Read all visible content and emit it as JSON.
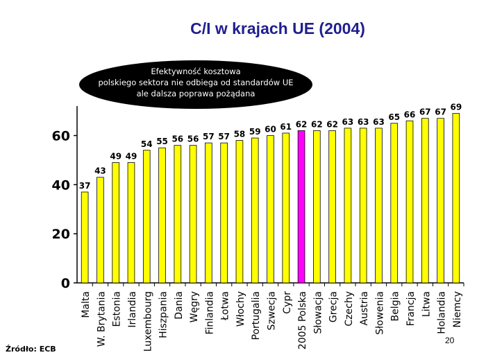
{
  "title": "C/I w krajach UE (2004)",
  "annotation": {
    "lines": [
      "Efektywność kosztowa",
      "polskiego sektora nie odbiega od standardów UE",
      "ale dalsza poprawa pożądana"
    ],
    "background": "#000000",
    "text_color": "#ffffff"
  },
  "source": "Źródło: ECB",
  "page_number": "20",
  "colors": {
    "bar": "#ffff00",
    "bar_highlight": "#ff00ff",
    "title": "#1f1f8f",
    "axis": "#000000"
  },
  "chart_data": {
    "type": "bar",
    "title": "C/I w krajach UE (2004)",
    "categories": [
      "Malta",
      "W. Brytania",
      "Estonia",
      "Irlandia",
      "Luxembourg",
      "Hiszpania",
      "Dania",
      "Węgry",
      "Finlandia",
      "Łotwa",
      "Włochy",
      "Portugalia",
      "Szwecja",
      "Cypr",
      "2005 Polska",
      "Słowacja",
      "Grecja",
      "Czechy",
      "Austria",
      "Słowenia",
      "Belgia",
      "Francja",
      "Litwa",
      "Holandia",
      "Niemcy"
    ],
    "values": [
      37,
      43,
      49,
      49,
      54,
      55,
      56,
      56,
      57,
      57,
      58,
      59,
      60,
      61,
      62,
      62,
      62,
      63,
      63,
      63,
      65,
      66,
      67,
      67,
      69
    ],
    "highlight_category": "2005 Polska",
    "ylim": [
      0,
      72
    ],
    "yticks": [
      0,
      20,
      40,
      60
    ],
    "xlabel": "",
    "ylabel": "",
    "grid": false,
    "legend": "none"
  }
}
